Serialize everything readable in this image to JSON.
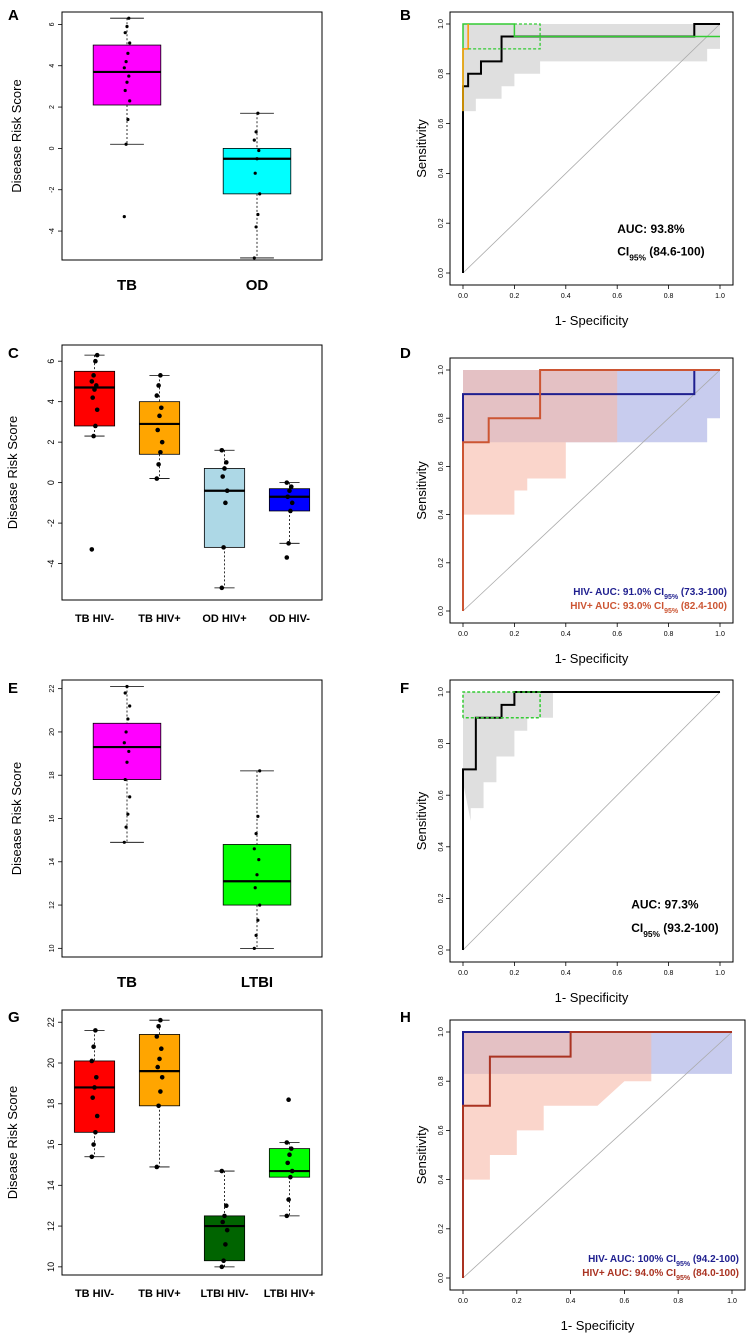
{
  "chart_data": [
    {
      "panel": "A",
      "type": "box",
      "ylabel": "Disease Risk Score",
      "ylim": [
        -5.4,
        6.6
      ],
      "yticks": [
        -4,
        -2,
        0,
        2,
        4,
        6
      ],
      "categories": [
        "TB",
        "OD"
      ],
      "colors": [
        "#ff00ff",
        "#00ffff"
      ],
      "boxes": [
        {
          "min": 0.2,
          "q1": 2.1,
          "median": 3.7,
          "q3": 5.0,
          "max": 6.3,
          "points": [
            -3.3,
            0.2,
            1.4,
            2.3,
            2.8,
            3.2,
            3.5,
            3.9,
            4.2,
            4.6,
            5.1,
            5.6,
            5.9,
            6.3
          ]
        },
        {
          "min": -5.3,
          "q1": -2.2,
          "median": -0.5,
          "q3": 0.0,
          "max": 1.7,
          "points": [
            -5.3,
            -3.8,
            -3.2,
            -2.2,
            -1.2,
            -0.5,
            -0.1,
            0.4,
            0.8,
            1.7
          ]
        }
      ]
    },
    {
      "panel": "B",
      "type": "roc",
      "xlabel": "1- Specificity",
      "ylabel": "Sensitivity",
      "xlim": [
        0,
        1
      ],
      "ylim": [
        0,
        1
      ],
      "ticks": [
        0.0,
        0.2,
        0.4,
        0.6,
        0.8,
        1.0
      ],
      "tick_labels": [
        "0.0",
        "0.2",
        "0.4",
        "0.6",
        "0.8",
        "1.0"
      ],
      "series": [
        {
          "name": "ROC",
          "color": "#000000",
          "x": [
            0,
            0,
            0.02,
            0.02,
            0.07,
            0.07,
            0.15,
            0.15,
            0.9,
            0.9,
            1
          ],
          "y": [
            0,
            0.75,
            0.75,
            0.8,
            0.8,
            0.85,
            0.85,
            0.95,
            0.95,
            1,
            1
          ]
        },
        {
          "name": "upper-green",
          "color": "#33cc33",
          "x": [
            0,
            0,
            0.2,
            0.2,
            1
          ],
          "y": [
            0.65,
            1,
            1,
            0.95,
            0.95
          ]
        },
        {
          "name": "upper-orange",
          "color": "#ff9900",
          "x": [
            0,
            0,
            0.02,
            0.02
          ],
          "y": [
            0.65,
            0.9,
            0.9,
            1
          ]
        }
      ],
      "auc_line1": "AUC: 93.8%",
      "auc_line2": "CI95% (84.6-100)"
    },
    {
      "panel": "C",
      "type": "box",
      "ylabel": "Disease Risk Score",
      "ylim": [
        -5.8,
        6.8
      ],
      "yticks": [
        -4,
        -2,
        0,
        2,
        4,
        6
      ],
      "categories": [
        "TB HIV-",
        "TB HIV+",
        "OD HIV+",
        "OD HIV-"
      ],
      "colors": [
        "#ff0000",
        "#ffa500",
        "#add8e6",
        "#0000ff"
      ],
      "boxes": [
        {
          "min": 2.3,
          "q1": 2.8,
          "median": 4.7,
          "q3": 5.5,
          "max": 6.3,
          "points": [
            -3.3,
            2.3,
            2.8,
            3.6,
            4.2,
            4.6,
            4.8,
            5.0,
            5.3,
            6.0,
            6.3
          ]
        },
        {
          "min": 0.2,
          "q1": 1.4,
          "median": 2.9,
          "q3": 4.0,
          "max": 5.3,
          "points": [
            0.2,
            0.9,
            1.5,
            2.0,
            2.6,
            3.3,
            3.7,
            4.3,
            4.8,
            5.3
          ]
        },
        {
          "min": -5.2,
          "q1": -3.2,
          "median": -0.4,
          "q3": 0.7,
          "max": 1.6,
          "points": [
            -5.2,
            -3.2,
            -1.0,
            -0.4,
            0.3,
            0.7,
            1.0,
            1.6
          ]
        },
        {
          "min": -3.0,
          "q1": -1.4,
          "median": -0.7,
          "q3": -0.3,
          "max": 0.0,
          "points": [
            -3.7,
            -3.0,
            -1.4,
            -1.0,
            -0.7,
            -0.4,
            -0.2,
            0.0
          ]
        }
      ]
    },
    {
      "panel": "D",
      "type": "roc",
      "xlabel": "1- Specificity",
      "ylabel": "Sensitivity",
      "xlim": [
        0,
        1
      ],
      "ylim": [
        0,
        1
      ],
      "ticks": [
        0.0,
        0.2,
        0.4,
        0.6,
        0.8,
        1.0
      ],
      "tick_labels": [
        "0.0",
        "0.2",
        "0.4",
        "0.6",
        "0.8",
        "1.0"
      ],
      "series": [
        {
          "name": "HIV-",
          "color": "#1f1f8f",
          "x": [
            0,
            0,
            0.9,
            0.9,
            1
          ],
          "y": [
            0,
            0.9,
            0.9,
            1,
            1
          ]
        },
        {
          "name": "HIV+",
          "color": "#cc5533",
          "x": [
            0,
            0,
            0.1,
            0.1,
            0.3,
            0.3,
            1
          ],
          "y": [
            0,
            0.7,
            0.7,
            0.8,
            0.8,
            1,
            1
          ]
        }
      ],
      "auc_line1": "HIV- AUC: 91.0% CI95% (73.3-100)",
      "auc_line2": "HIV+ AUC: 93.0% CI95% (82.4-100)"
    },
    {
      "panel": "E",
      "type": "box",
      "ylabel": "Disease Risk Score",
      "ylim": [
        9.6,
        22.4
      ],
      "yticks": [
        10,
        12,
        14,
        16,
        18,
        20,
        22
      ],
      "categories": [
        "TB",
        "LTBI"
      ],
      "colors": [
        "#ff00ff",
        "#00ff00"
      ],
      "boxes": [
        {
          "min": 14.9,
          "q1": 17.8,
          "median": 19.3,
          "q3": 20.4,
          "max": 22.1,
          "points": [
            14.9,
            15.6,
            16.2,
            17.0,
            17.8,
            18.6,
            19.1,
            19.5,
            20.0,
            20.6,
            21.2,
            21.8,
            22.1
          ]
        },
        {
          "min": 10.0,
          "q1": 12.0,
          "median": 13.1,
          "q3": 14.8,
          "max": 18.2,
          "points": [
            10.0,
            10.6,
            11.3,
            12.0,
            12.8,
            13.4,
            14.1,
            14.6,
            15.3,
            16.1,
            18.2
          ]
        }
      ]
    },
    {
      "panel": "F",
      "type": "roc",
      "xlabel": "1- Specificity",
      "ylabel": "Sensitivity",
      "xlim": [
        0,
        1
      ],
      "ylim": [
        0,
        1
      ],
      "ticks": [
        0.0,
        0.2,
        0.4,
        0.6,
        0.8,
        1.0
      ],
      "tick_labels": [
        "0.0",
        "0.2",
        "0.4",
        "0.6",
        "0.8",
        "1.0"
      ],
      "series": [
        {
          "name": "ROC",
          "color": "#000000",
          "x": [
            0,
            0,
            0.05,
            0.05,
            0.15,
            0.15,
            0.2,
            0.2,
            1
          ],
          "y": [
            0,
            0.7,
            0.7,
            0.9,
            0.9,
            0.95,
            0.95,
            1,
            1
          ]
        },
        {
          "name": "upper-green",
          "color": "#33cc33",
          "x": [
            0,
            0,
            0.3,
            0.3,
            0
          ],
          "y": [
            0.9,
            1,
            1,
            0.9,
            0.9
          ]
        }
      ],
      "auc_line1": "AUC: 97.3%",
      "auc_line2": "CI95% (93.2-100)"
    },
    {
      "panel": "G",
      "type": "box",
      "ylabel": "Disease Risk Score",
      "ylim": [
        9.6,
        22.6
      ],
      "yticks": [
        10,
        12,
        14,
        16,
        18,
        20,
        22
      ],
      "categories": [
        "TB HIV-",
        "TB HIV+",
        "LTBI HIV-",
        "LTBI HIV+"
      ],
      "colors": [
        "#ff0000",
        "#ffa500",
        "#006400",
        "#00ff00"
      ],
      "boxes": [
        {
          "min": 15.4,
          "q1": 16.6,
          "median": 18.8,
          "q3": 20.1,
          "max": 21.6,
          "points": [
            15.4,
            16.0,
            16.6,
            17.4,
            18.3,
            18.8,
            19.3,
            20.1,
            20.8,
            21.6
          ]
        },
        {
          "min": 14.9,
          "q1": 17.9,
          "median": 19.6,
          "q3": 21.4,
          "max": 22.1,
          "points": [
            14.9,
            17.9,
            18.6,
            19.3,
            19.8,
            20.2,
            20.7,
            21.3,
            21.8,
            22.1
          ]
        },
        {
          "min": 10.0,
          "q1": 10.3,
          "median": 12.0,
          "q3": 12.5,
          "max": 14.7,
          "points": [
            10.0,
            10.3,
            11.1,
            11.8,
            12.2,
            12.5,
            13.0,
            14.7
          ]
        },
        {
          "min": 12.5,
          "q1": 14.4,
          "median": 14.7,
          "q3": 15.8,
          "max": 16.1,
          "points": [
            12.5,
            13.3,
            14.4,
            14.7,
            15.1,
            15.5,
            15.8,
            16.1,
            18.2
          ]
        }
      ]
    },
    {
      "panel": "H",
      "type": "roc",
      "xlabel": "1- Specificity",
      "ylabel": "Sensitivity",
      "xlim": [
        0,
        1
      ],
      "ylim": [
        0,
        1
      ],
      "ticks": [
        0.0,
        0.2,
        0.4,
        0.6,
        0.8,
        1.0
      ],
      "tick_labels": [
        "0.0",
        "0.2",
        "0.4",
        "0.6",
        "0.8",
        "1.0"
      ],
      "series": [
        {
          "name": "HIV-",
          "color": "#1f1f8f",
          "x": [
            0,
            0,
            1
          ],
          "y": [
            0,
            1,
            1
          ]
        },
        {
          "name": "HIV+",
          "color": "#aa3322",
          "x": [
            0,
            0,
            0.1,
            0.1,
            0.4,
            0.4,
            1
          ],
          "y": [
            0,
            0.7,
            0.7,
            0.9,
            0.9,
            1,
            1
          ]
        }
      ],
      "auc_line1": "HIV- AUC: 100% CI95% (94.2-100)",
      "auc_line2": "HIV+ AUC: 94.0% CI95% (84.0-100)"
    }
  ]
}
